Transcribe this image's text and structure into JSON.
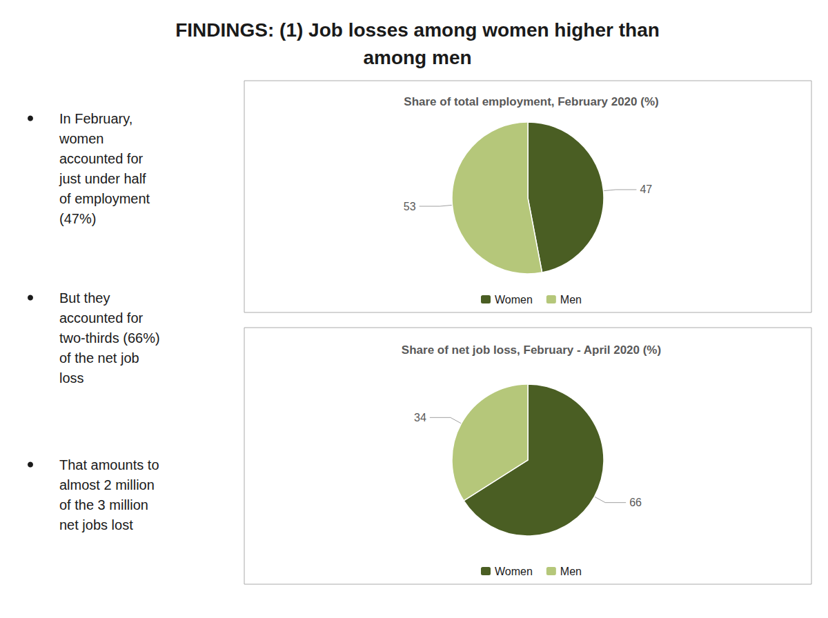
{
  "title": "FINDINGS: (1) Job losses among women higher than\namong men",
  "annotations": [
    "In February,\nwomen\naccounted for\njust under half\nof employment\n(47%)",
    "But they\naccounted for\ntwo-thirds (66%)\nof the net job\nloss",
    "That amounts to\nalmost 2 million\nof the 3 million\nnet jobs lost"
  ],
  "chart_data": [
    {
      "type": "pie",
      "title": "Share of total employment, February 2020 (%)",
      "categories": [
        "Women",
        "Men"
      ],
      "values": [
        47,
        53
      ],
      "colors": [
        "#4a5e23",
        "#b5c77a"
      ],
      "data_labels": true,
      "legend": "bottom"
    },
    {
      "type": "pie",
      "title": "Share of net job loss, February - April 2020 (%)",
      "categories": [
        "Women",
        "Men"
      ],
      "values": [
        66,
        34
      ],
      "colors": [
        "#4a5e23",
        "#b5c77a"
      ],
      "data_labels": true,
      "legend": "bottom"
    }
  ]
}
